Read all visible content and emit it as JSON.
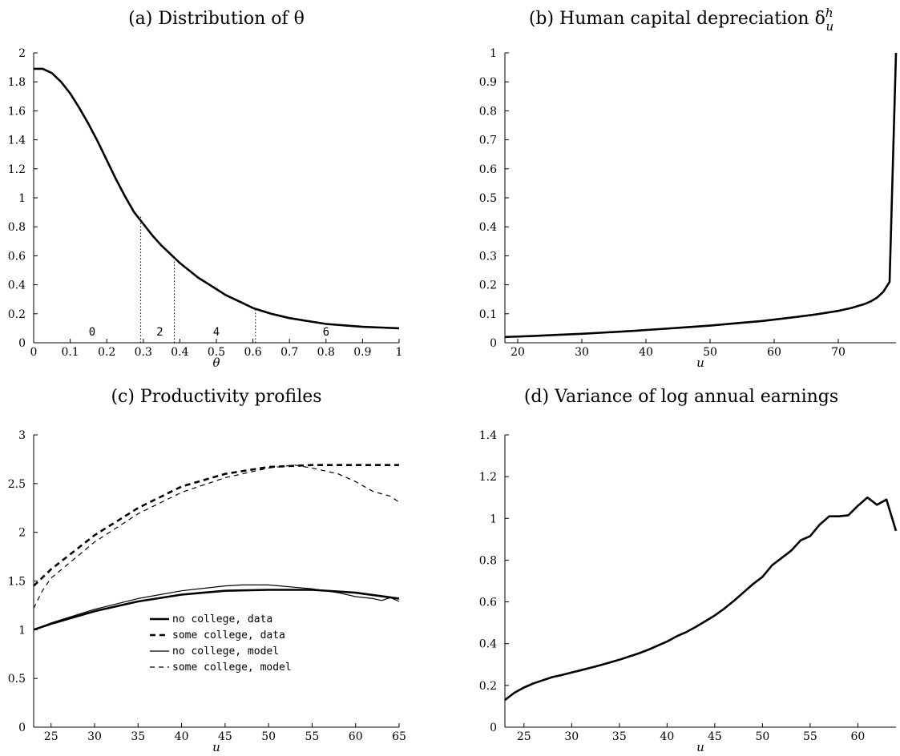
{
  "chart_data": [
    {
      "type": "line",
      "title": "(a) Distribution of θ",
      "xlabel": "θ",
      "ylabel": "",
      "xlim": [
        0,
        1
      ],
      "ylim": [
        0,
        2
      ],
      "xticks": [
        "0",
        "0.1",
        "0.2",
        "0.3",
        "0.4",
        "0.5",
        "0.6",
        "0.7",
        "0.8",
        "0.9",
        "1"
      ],
      "yticks": [
        "0",
        "0.2",
        "0.4",
        "0.6",
        "0.8",
        "1",
        "1.2",
        "1.4",
        "1.6",
        "1.8",
        "2"
      ],
      "series": [
        {
          "style": "solid-thick",
          "x": [
            0,
            0.025,
            0.05,
            0.075,
            0.1,
            0.125,
            0.15,
            0.175,
            0.2,
            0.225,
            0.25,
            0.275,
            0.3,
            0.325,
            0.35,
            0.375,
            0.4,
            0.425,
            0.45,
            0.475,
            0.5,
            0.525,
            0.55,
            0.575,
            0.6,
            0.625,
            0.65,
            0.7,
            0.75,
            0.8,
            0.85,
            0.9,
            0.95,
            1
          ],
          "y": [
            1.89,
            1.89,
            1.86,
            1.8,
            1.72,
            1.62,
            1.51,
            1.39,
            1.26,
            1.13,
            1.01,
            0.9,
            0.82,
            0.74,
            0.67,
            0.61,
            0.55,
            0.5,
            0.45,
            0.41,
            0.37,
            0.33,
            0.3,
            0.27,
            0.24,
            0.22,
            0.2,
            0.17,
            0.15,
            0.13,
            0.12,
            0.11,
            0.105,
            0.1
          ]
        }
      ],
      "regions": {
        "labels": [
          "0",
          "2",
          "4",
          "6"
        ],
        "label_x": [
          0.16,
          0.345,
          0.5,
          0.8
        ],
        "boundaries": [
          {
            "x": 0.293,
            "y": 0.87
          },
          {
            "x": 0.385,
            "y": 0.57
          },
          {
            "x": 0.607,
            "y": 0.24
          }
        ]
      }
    },
    {
      "type": "line",
      "title": "(b) Human capital depreciation δ",
      "title_sup": "h",
      "title_sub": "u",
      "xlabel": "u",
      "ylabel": "",
      "xlim": [
        18,
        79
      ],
      "ylim": [
        0,
        1
      ],
      "xticks": [
        "20",
        "30",
        "40",
        "50",
        "60",
        "70"
      ],
      "xtick_values": [
        20,
        30,
        40,
        50,
        60,
        70
      ],
      "yticks": [
        "0",
        "0.1",
        "0.2",
        "0.3",
        "0.4",
        "0.5",
        "0.6",
        "0.7",
        "0.8",
        "0.9",
        "1"
      ],
      "series": [
        {
          "style": "solid-thick",
          "x": [
            18,
            22,
            26,
            30,
            34,
            38,
            42,
            46,
            50,
            54,
            58,
            62,
            66,
            70,
            72,
            74,
            75,
            76,
            77,
            78,
            79
          ],
          "y": [
            0.02,
            0.023,
            0.027,
            0.031,
            0.036,
            0.041,
            0.047,
            0.053,
            0.059,
            0.067,
            0.075,
            0.085,
            0.096,
            0.11,
            0.12,
            0.133,
            0.142,
            0.155,
            0.175,
            0.21,
            1.0
          ]
        }
      ]
    },
    {
      "type": "line",
      "title": "(c) Productivity profiles",
      "xlabel": "u",
      "ylabel": "",
      "xlim": [
        23,
        65
      ],
      "ylim": [
        0,
        3
      ],
      "xticks": [
        "25",
        "30",
        "35",
        "40",
        "45",
        "50",
        "55",
        "60",
        "65"
      ],
      "xtick_values": [
        25,
        30,
        35,
        40,
        45,
        50,
        55,
        60,
        65
      ],
      "yticks": [
        "0",
        "0.5",
        "1",
        "1.5",
        "2",
        "2.5",
        "3"
      ],
      "legend_position": "lower-center",
      "series": [
        {
          "name": "no college, data",
          "style": "solid-thick",
          "x": [
            23,
            25,
            30,
            35,
            40,
            45,
            50,
            55,
            60,
            65
          ],
          "y": [
            1.0,
            1.06,
            1.19,
            1.29,
            1.36,
            1.4,
            1.41,
            1.41,
            1.38,
            1.32
          ]
        },
        {
          "name": "some college, data",
          "style": "dashed-thick",
          "x": [
            23,
            25,
            30,
            35,
            40,
            45,
            50,
            55,
            60,
            65
          ],
          "y": [
            1.45,
            1.62,
            1.97,
            2.25,
            2.47,
            2.6,
            2.67,
            2.69,
            2.69,
            2.69
          ]
        },
        {
          "name": "no college, model",
          "style": "solid-thin",
          "x": [
            23,
            25,
            30,
            35,
            40,
            45,
            47,
            50,
            55,
            58,
            60,
            62,
            63,
            64,
            65
          ],
          "y": [
            1.0,
            1.07,
            1.21,
            1.32,
            1.4,
            1.45,
            1.46,
            1.46,
            1.42,
            1.38,
            1.34,
            1.32,
            1.3,
            1.33,
            1.29
          ]
        },
        {
          "name": "some college, model",
          "style": "dashed-thin",
          "x": [
            23,
            24,
            25,
            30,
            35,
            40,
            45,
            50,
            53,
            55,
            58,
            60,
            62,
            64,
            65
          ],
          "y": [
            1.22,
            1.4,
            1.53,
            1.9,
            2.19,
            2.41,
            2.56,
            2.66,
            2.69,
            2.66,
            2.6,
            2.52,
            2.42,
            2.37,
            2.31
          ]
        }
      ]
    },
    {
      "type": "line",
      "title": "(d) Variance of log annual earnings",
      "xlabel": "u",
      "ylabel": "",
      "xlim": [
        23,
        64
      ],
      "ylim": [
        0,
        1.4
      ],
      "xticks": [
        "25",
        "30",
        "35",
        "40",
        "45",
        "50",
        "55",
        "60"
      ],
      "xtick_values": [
        25,
        30,
        35,
        40,
        45,
        50,
        55,
        60
      ],
      "yticks": [
        "0",
        "0.2",
        "0.4",
        "0.6",
        "0.8",
        "1",
        "1.2",
        "1.4"
      ],
      "series": [
        {
          "style": "solid-thick",
          "x": [
            23,
            24,
            25,
            26,
            27,
            28,
            29,
            30,
            31,
            32,
            33,
            34,
            35,
            36,
            37,
            38,
            39,
            40,
            41,
            42,
            43,
            44,
            45,
            46,
            47,
            48,
            49,
            50,
            51,
            52,
            53,
            54,
            55,
            56,
            57,
            58,
            59,
            60,
            61,
            62,
            63,
            64
          ],
          "y": [
            0.13,
            0.165,
            0.19,
            0.21,
            0.225,
            0.24,
            0.25,
            0.262,
            0.273,
            0.285,
            0.297,
            0.31,
            0.323,
            0.338,
            0.353,
            0.37,
            0.39,
            0.41,
            0.435,
            0.455,
            0.48,
            0.507,
            0.535,
            0.568,
            0.605,
            0.645,
            0.685,
            0.72,
            0.775,
            0.81,
            0.845,
            0.895,
            0.915,
            0.97,
            1.01,
            1.01,
            1.015,
            1.06,
            1.1,
            1.065,
            1.09,
            0.94
          ]
        }
      ]
    }
  ]
}
